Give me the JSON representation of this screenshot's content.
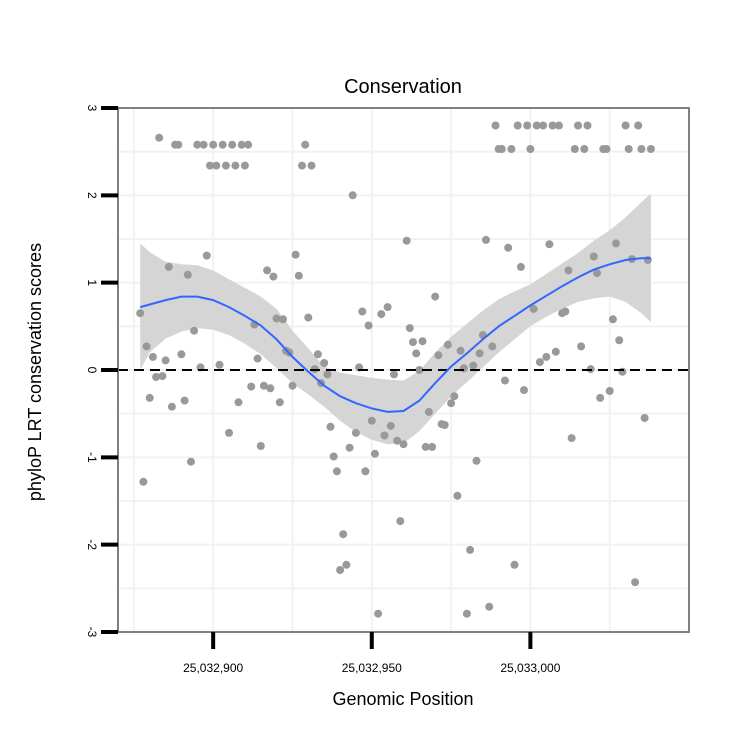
{
  "chart_data": {
    "type": "scatter",
    "title": "Conservation",
    "xlabel": "Genomic Position",
    "ylabel": "phyloP LRT conservation scores",
    "xlim": [
      25032870,
      25033050
    ],
    "ylim": [
      -3.0,
      3.0
    ],
    "x_ticks": [
      {
        "value": 25032900,
        "label": "25,032,900"
      },
      {
        "value": 25032950,
        "label": "25,032,950"
      },
      {
        "value": 25033000,
        "label": "25,033,000"
      }
    ],
    "y_ticks": [
      {
        "value": -3,
        "label": "-3"
      },
      {
        "value": -2,
        "label": "-2"
      },
      {
        "value": -1,
        "label": "-1"
      },
      {
        "value": 0,
        "label": "0"
      },
      {
        "value": 1,
        "label": "1"
      },
      {
        "value": 2,
        "label": "2"
      },
      {
        "value": 3,
        "label": "3"
      }
    ],
    "reference_line": {
      "y": 0,
      "style": "dashed"
    },
    "grid": true,
    "colors": {
      "points": "#999999",
      "smooth": "#3366ff",
      "ribbon": "#d3d3d3",
      "reference": "#000000",
      "grid": "#f2f2f2",
      "border": "#808080"
    },
    "points": [
      [
        25032877,
        0.65
      ],
      [
        25032878,
        -1.28
      ],
      [
        25032879,
        0.27
      ],
      [
        25032880,
        -0.32
      ],
      [
        25032881,
        0.15
      ],
      [
        25032882,
        -0.08
      ],
      [
        25032883,
        2.66
      ],
      [
        25032884,
        -0.07
      ],
      [
        25032885,
        0.11
      ],
      [
        25032886,
        1.18
      ],
      [
        25032887,
        -0.42
      ],
      [
        25032888,
        2.58
      ],
      [
        25032889,
        2.58
      ],
      [
        25032890,
        0.18
      ],
      [
        25032891,
        -0.35
      ],
      [
        25032892,
        1.09
      ],
      [
        25032893,
        -1.05
      ],
      [
        25032894,
        0.45
      ],
      [
        25032895,
        2.58
      ],
      [
        25032896,
        0.03
      ],
      [
        25032897,
        2.58
      ],
      [
        25032898,
        1.31
      ],
      [
        25032899,
        2.34
      ],
      [
        25032900,
        2.58
      ],
      [
        25032901,
        2.34
      ],
      [
        25032902,
        0.06
      ],
      [
        25032903,
        2.58
      ],
      [
        25032904,
        2.34
      ],
      [
        25032905,
        -0.72
      ],
      [
        25032906,
        2.58
      ],
      [
        25032907,
        2.34
      ],
      [
        25032908,
        -0.37
      ],
      [
        25032909,
        2.58
      ],
      [
        25032910,
        2.34
      ],
      [
        25032911,
        2.58
      ],
      [
        25032912,
        -0.19
      ],
      [
        25032913,
        0.52
      ],
      [
        25032914,
        0.13
      ],
      [
        25032915,
        -0.87
      ],
      [
        25032916,
        -0.18
      ],
      [
        25032917,
        1.14
      ],
      [
        25032918,
        -0.21
      ],
      [
        25032919,
        1.07
      ],
      [
        25032920,
        0.59
      ],
      [
        25032921,
        -0.37
      ],
      [
        25032922,
        0.58
      ],
      [
        25032923,
        0.22
      ],
      [
        25032924,
        0.2
      ],
      [
        25032925,
        -0.18
      ],
      [
        25032926,
        1.32
      ],
      [
        25032927,
        1.08
      ],
      [
        25032928,
        2.34
      ],
      [
        25032929,
        2.58
      ],
      [
        25032930,
        0.6
      ],
      [
        25032931,
        2.34
      ],
      [
        25032932,
        0.01
      ],
      [
        25032933,
        0.18
      ],
      [
        25032934,
        -0.15
      ],
      [
        25032935,
        0.08
      ],
      [
        25032936,
        -0.05
      ],
      [
        25032937,
        -0.65
      ],
      [
        25032938,
        -0.99
      ],
      [
        25032939,
        -1.16
      ],
      [
        25032940,
        -2.29
      ],
      [
        25032941,
        -1.88
      ],
      [
        25032942,
        -2.23
      ],
      [
        25032943,
        -0.89
      ],
      [
        25032944,
        2.0
      ],
      [
        25032945,
        -0.72
      ],
      [
        25032946,
        0.03
      ],
      [
        25032947,
        0.67
      ],
      [
        25032948,
        -1.16
      ],
      [
        25032949,
        0.51
      ],
      [
        25032950,
        -0.58
      ],
      [
        25032951,
        -0.96
      ],
      [
        25032952,
        -2.79
      ],
      [
        25032953,
        0.64
      ],
      [
        25032954,
        -0.75
      ],
      [
        25032955,
        0.72
      ],
      [
        25032956,
        -0.64
      ],
      [
        25032957,
        -0.05
      ],
      [
        25032958,
        -0.81
      ],
      [
        25032959,
        -1.73
      ],
      [
        25032960,
        -0.85
      ],
      [
        25032961,
        1.48
      ],
      [
        25032962,
        0.48
      ],
      [
        25032963,
        0.32
      ],
      [
        25032964,
        0.19
      ],
      [
        25032965,
        0.0
      ],
      [
        25032966,
        0.33
      ],
      [
        25032967,
        -0.88
      ],
      [
        25032968,
        -0.48
      ],
      [
        25032969,
        -0.88
      ],
      [
        25032970,
        0.84
      ],
      [
        25032971,
        0.17
      ],
      [
        25032972,
        -0.62
      ],
      [
        25032973,
        -0.63
      ],
      [
        25032974,
        0.29
      ],
      [
        25032975,
        -0.38
      ],
      [
        25032976,
        -0.3
      ],
      [
        25032977,
        -1.44
      ],
      [
        25032978,
        0.22
      ],
      [
        25032979,
        0.02
      ],
      [
        25032980,
        -2.79
      ],
      [
        25032981,
        -2.06
      ],
      [
        25032982,
        0.05
      ],
      [
        25032983,
        -1.04
      ],
      [
        25032984,
        0.19
      ],
      [
        25032985,
        0.4
      ],
      [
        25032986,
        1.49
      ],
      [
        25032987,
        -2.71
      ],
      [
        25032988,
        0.27
      ],
      [
        25032989,
        2.8
      ],
      [
        25032990,
        2.53
      ],
      [
        25032991,
        2.53
      ],
      [
        25032992,
        -0.12
      ],
      [
        25032993,
        1.4
      ],
      [
        25032994,
        2.53
      ],
      [
        25032995,
        -2.23
      ],
      [
        25032996,
        2.8
      ],
      [
        25032997,
        1.18
      ],
      [
        25032998,
        -0.23
      ],
      [
        25032999,
        2.8
      ],
      [
        25033000,
        2.53
      ],
      [
        25033001,
        0.7
      ],
      [
        25033002,
        2.8
      ],
      [
        25033003,
        0.09
      ],
      [
        25033004,
        2.8
      ],
      [
        25033005,
        0.15
      ],
      [
        25033006,
        1.44
      ],
      [
        25033007,
        2.8
      ],
      [
        25033008,
        0.21
      ],
      [
        25033009,
        2.8
      ],
      [
        25033010,
        0.65
      ],
      [
        25033011,
        0.67
      ],
      [
        25033012,
        1.14
      ],
      [
        25033013,
        -0.78
      ],
      [
        25033014,
        2.53
      ],
      [
        25033015,
        2.8
      ],
      [
        25033016,
        0.27
      ],
      [
        25033017,
        2.53
      ],
      [
        25033018,
        2.8
      ],
      [
        25033019,
        0.01
      ],
      [
        25033020,
        1.3
      ],
      [
        25033021,
        1.11
      ],
      [
        25033022,
        -0.32
      ],
      [
        25033023,
        2.53
      ],
      [
        25033024,
        2.53
      ],
      [
        25033025,
        -0.24
      ],
      [
        25033026,
        0.58
      ],
      [
        25033027,
        1.45
      ],
      [
        25033028,
        0.34
      ],
      [
        25033029,
        -0.02
      ],
      [
        25033030,
        2.8
      ],
      [
        25033031,
        2.53
      ],
      [
        25033032,
        1.27
      ],
      [
        25033033,
        -2.43
      ],
      [
        25033034,
        2.8
      ],
      [
        25033035,
        2.53
      ],
      [
        25033036,
        -0.55
      ],
      [
        25033037,
        1.26
      ],
      [
        25033038,
        2.53
      ]
    ],
    "smooth": {
      "x": [
        25032877,
        25032880,
        25032885,
        25032890,
        25032895,
        25032900,
        25032905,
        25032910,
        25032915,
        25032920,
        25032925,
        25032930,
        25032935,
        25032940,
        25032945,
        25032950,
        25032955,
        25032960,
        25032965,
        25032970,
        25032975,
        25032980,
        25032985,
        25032990,
        25032995,
        25033000,
        25033005,
        25033010,
        25033015,
        25033020,
        25033025,
        25033030,
        25033035,
        25033038
      ],
      "y": [
        0.72,
        0.75,
        0.8,
        0.84,
        0.84,
        0.8,
        0.72,
        0.62,
        0.51,
        0.35,
        0.15,
        -0.02,
        -0.18,
        -0.3,
        -0.38,
        -0.44,
        -0.48,
        -0.47,
        -0.35,
        -0.15,
        0.04,
        0.19,
        0.35,
        0.5,
        0.62,
        0.74,
        0.85,
        0.96,
        1.06,
        1.15,
        1.21,
        1.26,
        1.28,
        1.28
      ],
      "lower": [
        0.0,
        0.2,
        0.36,
        0.44,
        0.48,
        0.46,
        0.4,
        0.3,
        0.18,
        0.02,
        -0.15,
        -0.28,
        -0.42,
        -0.58,
        -0.71,
        -0.8,
        -0.85,
        -0.84,
        -0.7,
        -0.5,
        -0.3,
        -0.14,
        0.03,
        0.2,
        0.35,
        0.5,
        0.61,
        0.7,
        0.78,
        0.82,
        0.84,
        0.78,
        0.65,
        0.55
      ],
      "upper": [
        1.45,
        1.35,
        1.24,
        1.21,
        1.2,
        1.14,
        1.04,
        0.94,
        0.84,
        0.7,
        0.45,
        0.25,
        0.04,
        -0.03,
        -0.06,
        -0.09,
        -0.11,
        -0.12,
        -0.01,
        0.2,
        0.38,
        0.53,
        0.68,
        0.81,
        0.9,
        0.98,
        1.1,
        1.22,
        1.34,
        1.48,
        1.6,
        1.75,
        1.92,
        2.02
      ]
    }
  }
}
